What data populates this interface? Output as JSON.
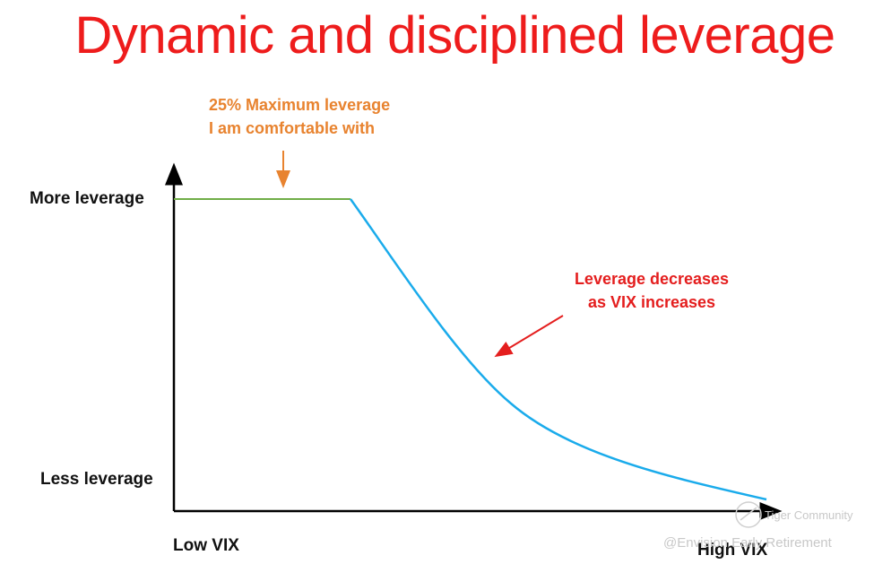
{
  "title": "Dynamic and disciplined leverage",
  "y_axis": {
    "top_label": "More leverage",
    "bottom_label": "Less leverage"
  },
  "x_axis": {
    "left_label": "Low VIX",
    "right_label": "High VIX"
  },
  "annotations": {
    "max_leverage": {
      "line1": "25% Maximum leverage",
      "line2": "I am comfortable with"
    },
    "decrease": {
      "line1": "Leverage decreases",
      "line2": "as VIX increases"
    }
  },
  "watermark": {
    "community": "Tiger Community",
    "handle": "@Envision Early Retirement"
  },
  "colors": {
    "title": "#ee1c1c",
    "flat_line": "#70ad47",
    "curve": "#1aabeb",
    "orange_note": "#e8832f",
    "red_note": "#e41e1e",
    "axis": "#000000"
  }
}
